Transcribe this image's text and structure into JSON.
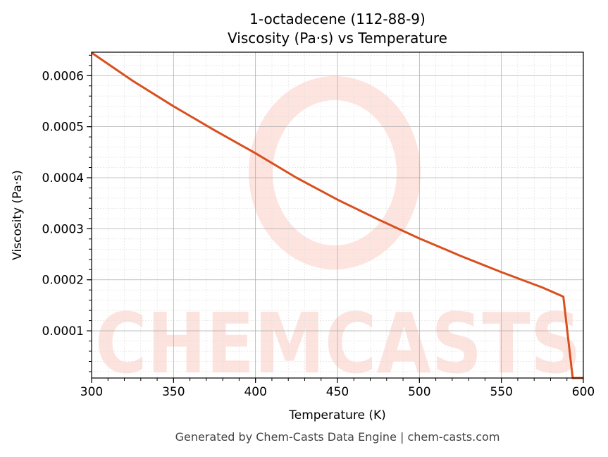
{
  "chart_data": {
    "type": "line",
    "title": "1-octadecene (112-88-9)",
    "subtitle": "Viscosity (Pa·s) vs Temperature",
    "xlabel": "Temperature (K)",
    "ylabel": "Viscosity (Pa·s)",
    "xlim": [
      300,
      600
    ],
    "ylim": [
      7.5e-06,
      0.000646
    ],
    "xticks": [
      300,
      350,
      400,
      450,
      500,
      550,
      600
    ],
    "xtick_labels": [
      "300",
      "350",
      "400",
      "450",
      "500",
      "550",
      "600"
    ],
    "yticks": [
      0.0001,
      0.0002,
      0.0003,
      0.0004,
      0.0005,
      0.0006
    ],
    "ytick_labels": [
      "0.0001",
      "0.0002",
      "0.0003",
      "0.0004",
      "0.0005",
      "0.0006"
    ],
    "grid": true,
    "series": [
      {
        "name": "Viscosity",
        "color": "#d94f1e",
        "x": [
          300,
          325,
          350,
          375,
          400,
          425,
          450,
          475,
          500,
          525,
          550,
          575,
          587.8,
          593.5,
          600
        ],
        "y": [
          0.000645,
          0.00059,
          0.00054,
          0.000493,
          0.000448,
          0.0004,
          0.000357,
          0.000318,
          0.000281,
          0.000247,
          0.000215,
          0.000185,
          0.000167,
          7.5e-06,
          7.5e-06
        ]
      }
    ],
    "watermark": "CHEMCASTS",
    "footer": "Generated by Chem-Casts Data Engine | chem-casts.com"
  }
}
